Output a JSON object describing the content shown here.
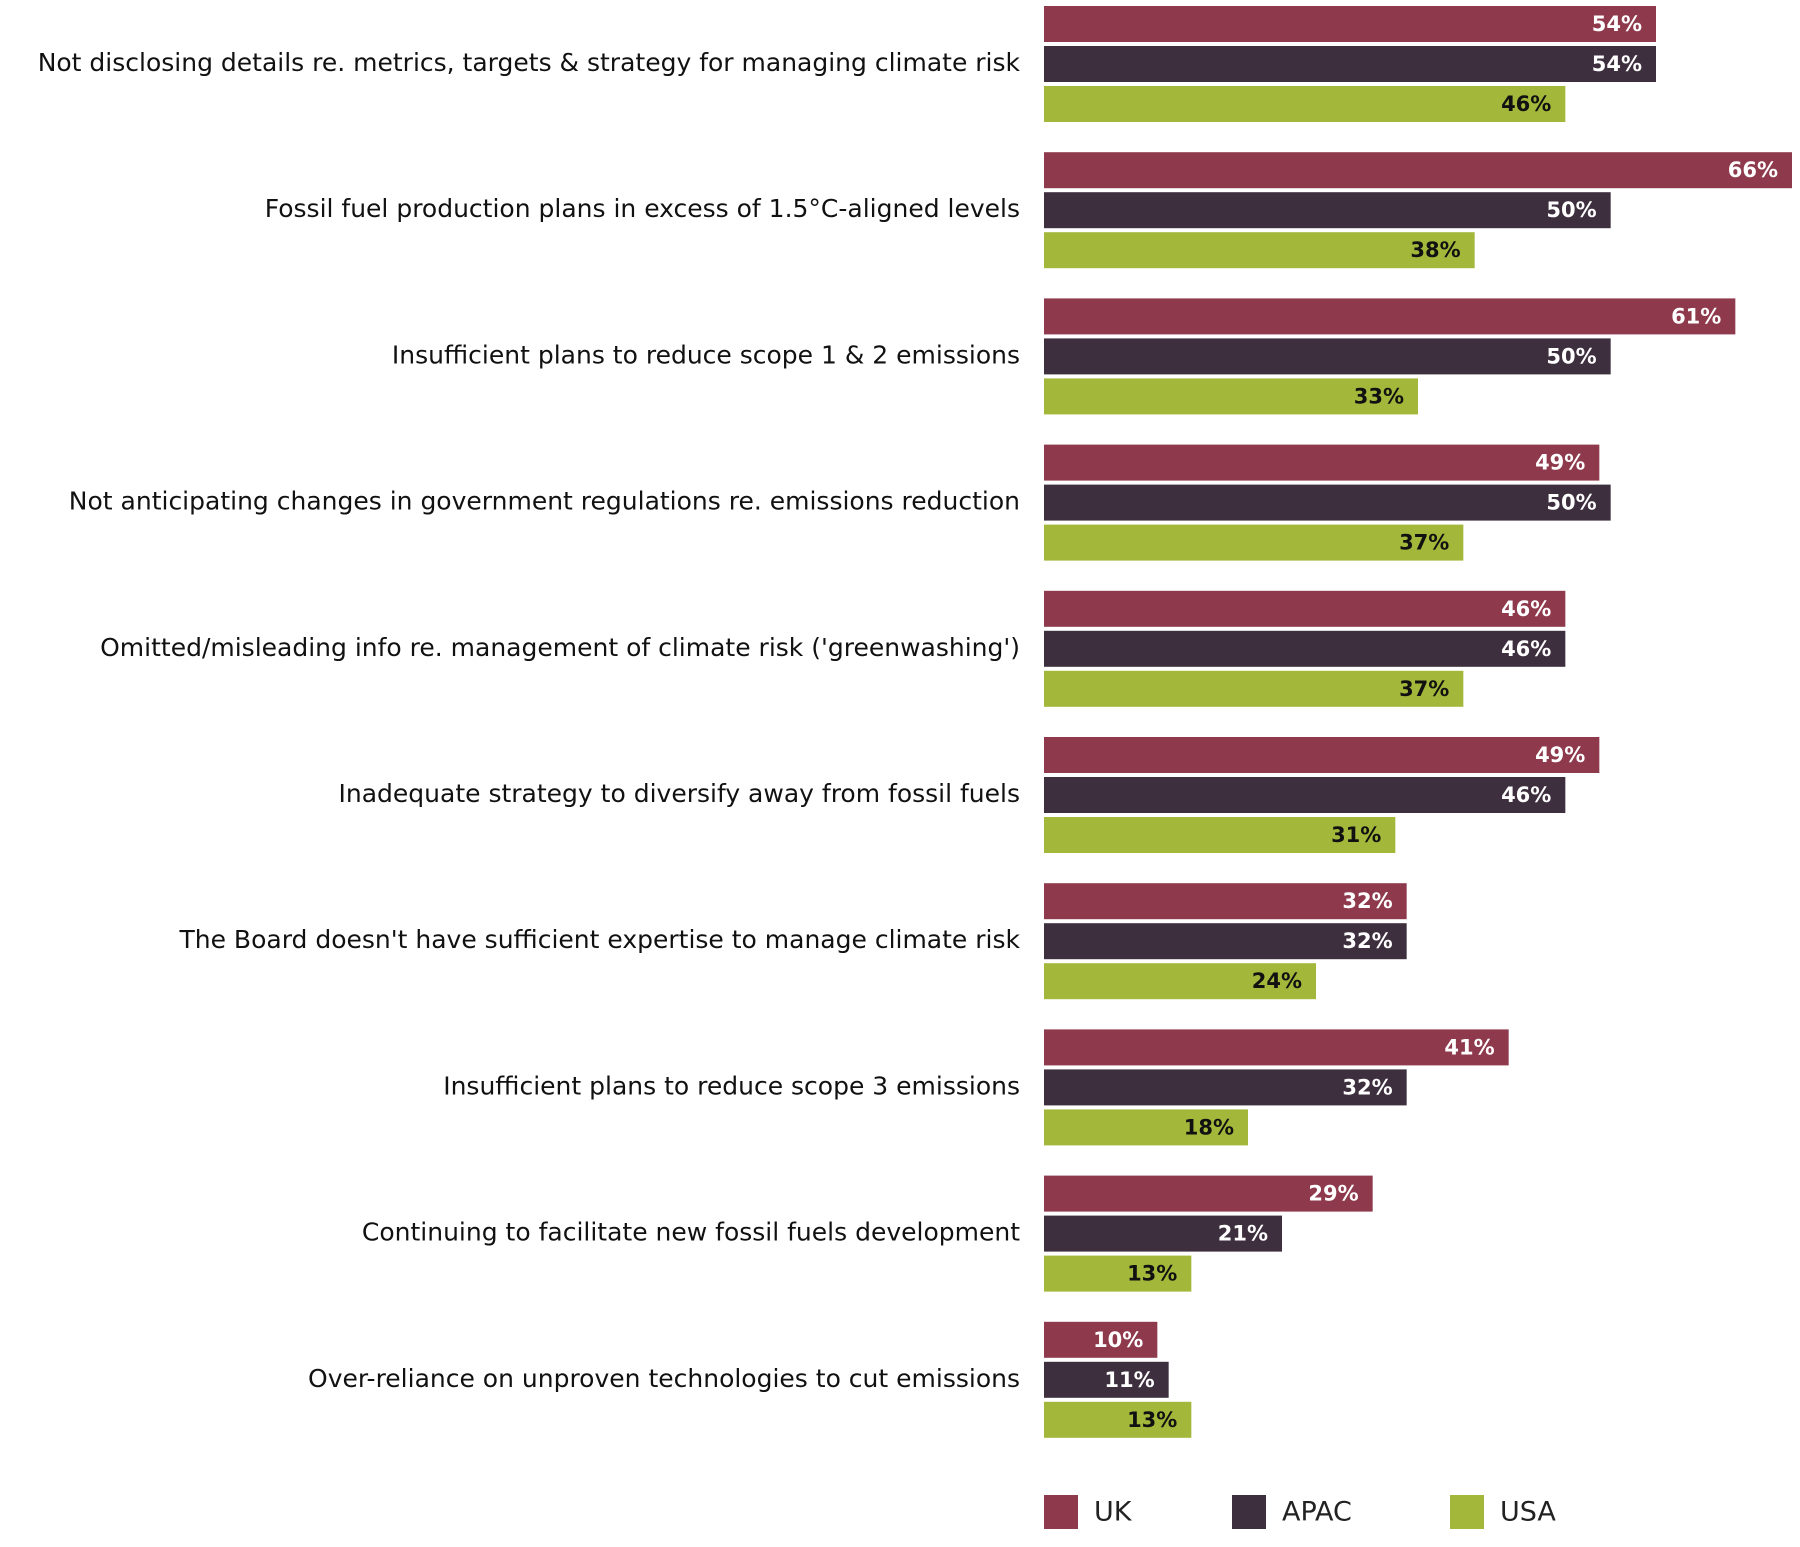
{
  "chart_data": {
    "type": "bar",
    "orientation": "horizontal",
    "title": "",
    "xlabel": "",
    "ylabel": "",
    "value_suffix": "%",
    "categories": [
      "Not disclosing details re. metrics, targets & strategy for managing climate risk",
      "Fossil fuel production plans in excess of 1.5°C-aligned levels",
      "Insufficient plans to reduce scope 1 & 2 emissions",
      "Not anticipating changes in government regulations re. emissions reduction",
      "Omitted/misleading info re. management of climate risk ('greenwashing')",
      "Inadequate strategy to diversify away from fossil fuels",
      "The Board doesn't have sufficient expertise to manage climate risk",
      "Insufficient plans to reduce scope 3 emissions",
      "Continuing to facilitate new fossil fuels development",
      "Over-reliance on unproven technologies to cut emissions"
    ],
    "series": [
      {
        "name": "UK",
        "color": "#8E3A4C",
        "label_color": "#ffffff",
        "values": [
          54,
          66,
          61,
          49,
          46,
          49,
          32,
          41,
          29,
          10
        ]
      },
      {
        "name": "APAC",
        "color": "#3E2F3F",
        "label_color": "#ffffff",
        "values": [
          54,
          50,
          50,
          50,
          46,
          46,
          32,
          32,
          21,
          11
        ]
      },
      {
        "name": "USA",
        "color": "#A3B83A",
        "label_color": "#111111",
        "values": [
          46,
          38,
          33,
          37,
          37,
          31,
          24,
          18,
          13,
          13
        ]
      }
    ],
    "xlim": [
      0,
      66
    ],
    "grid": false,
    "legend_position": "bottom"
  }
}
